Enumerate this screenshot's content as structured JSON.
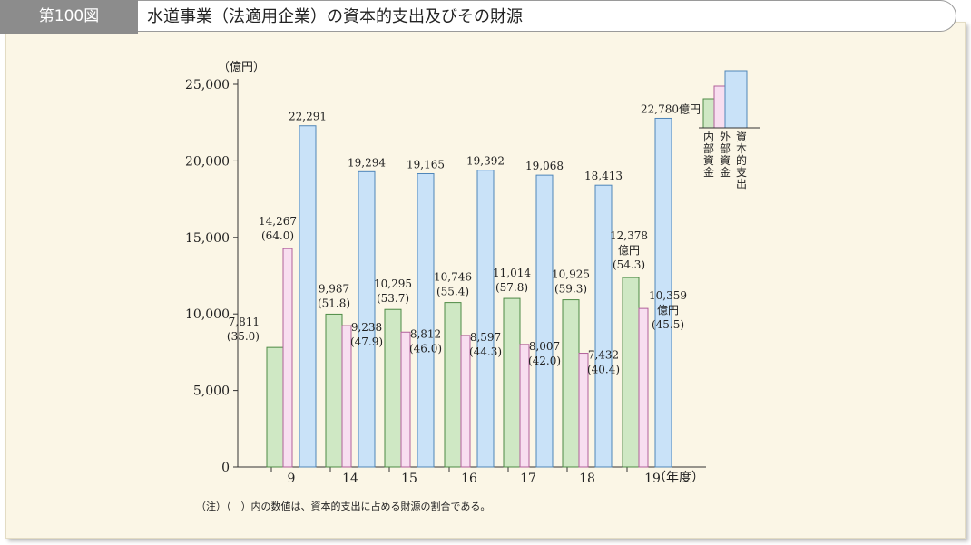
{
  "header": {
    "figure_number": "第100図",
    "title": "水道事業（法適用企業）の資本的支出及びその財源"
  },
  "colors": {
    "internal": "#cfe8c4",
    "external": "#f8def0",
    "capital": "#c9e2f8",
    "background": "#fbf6e6"
  },
  "chart_data": {
    "type": "bar",
    "title": "水道事業（法適用企業）の資本的支出及びその財源",
    "ylabel": "（億円）",
    "xlabel": "（年度）",
    "ylim": [
      0,
      25000
    ],
    "yticks": [
      0,
      5000,
      10000,
      15000,
      20000,
      25000
    ],
    "ytick_labels": [
      "0",
      "5,000",
      "10,000",
      "15,000",
      "20,000",
      "25,000"
    ],
    "categories": [
      "9",
      "14",
      "15",
      "16",
      "17",
      "18",
      "19"
    ],
    "series": [
      {
        "name": "内部資金",
        "values": [
          7811,
          9987,
          10295,
          10746,
          11014,
          10925,
          12378
        ],
        "labels": [
          "7,811",
          "9,987",
          "10,295",
          "10,746",
          "11,014",
          "10,925",
          "12,378"
        ],
        "shares": [
          "(35.0)",
          "(51.8)",
          "(53.7)",
          "(55.4)",
          "(57.8)",
          "(59.3)",
          "(54.3)"
        ]
      },
      {
        "name": "外部資金",
        "values": [
          14267,
          9238,
          8812,
          8597,
          8007,
          7432,
          10359
        ],
        "labels": [
          "14,267",
          "9,238",
          "8,812",
          "8,597",
          "8,007",
          "7,432",
          "10,359"
        ],
        "shares": [
          "(64.0)",
          "(47.9)",
          "(46.0)",
          "(44.3)",
          "(42.0)",
          "(40.4)",
          "(45.5)"
        ]
      },
      {
        "name": "資本的支出",
        "values": [
          22291,
          19294,
          19165,
          19392,
          19068,
          18413,
          22780
        ],
        "labels": [
          "22,291",
          "19,294",
          "19,165",
          "19,392",
          "19,068",
          "18,413",
          "22,780億円"
        ]
      }
    ],
    "unit_label": "億円",
    "note": "（注）（　）内の数値は、資本的支出に占める財源の割合である。"
  }
}
